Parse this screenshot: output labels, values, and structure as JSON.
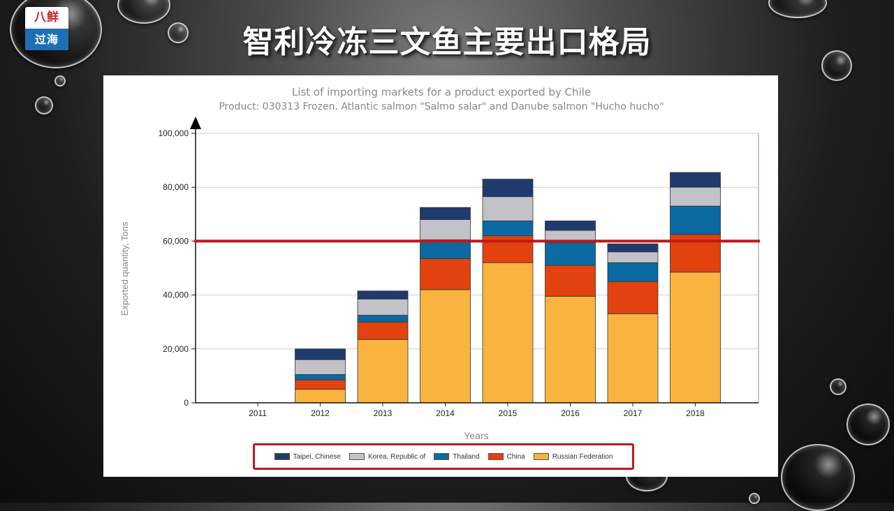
{
  "slide": {
    "title": "智利冷冻三文鱼主要出口格局",
    "logo": {
      "top": "八鲜",
      "bottom": "过海"
    }
  },
  "chart_data": {
    "type": "bar",
    "stacked": true,
    "title": "List of importing markets for a product exported by Chile",
    "subtitle": "Product: 030313 Frozen, Atlantic salmon \"Salmo salar\" and Danube salmon \"Hucho hucho\"",
    "xlabel": "Years",
    "ylabel": "Exported quantity, Tons",
    "categories": [
      "2011",
      "2012",
      "2013",
      "2014",
      "2015",
      "2016",
      "2017",
      "2018"
    ],
    "ylim": [
      0,
      100000
    ],
    "yticks": [
      0,
      20000,
      40000,
      60000,
      80000,
      100000
    ],
    "ytick_labels": [
      "0",
      "20,000",
      "40,000",
      "60,000",
      "80,000",
      "100,000"
    ],
    "grid": true,
    "legend_position": "bottom",
    "reference_line": {
      "value": 60000,
      "color": "#c3161c"
    },
    "series": [
      {
        "name": "Russian Federation",
        "color": "#f9b440",
        "values": [
          0,
          5000,
          23500,
          42000,
          52000,
          39500,
          33000,
          48500
        ]
      },
      {
        "name": "China",
        "color": "#e2420d",
        "values": [
          0,
          3500,
          6500,
          11500,
          10000,
          11500,
          12000,
          14000
        ]
      },
      {
        "name": "Thailand",
        "color": "#0a6aa1",
        "values": [
          0,
          2000,
          2500,
          7000,
          5500,
          8500,
          7000,
          10500
        ]
      },
      {
        "name": "Korea, Republic of",
        "color": "#c2c3c8",
        "values": [
          0,
          5500,
          6000,
          7500,
          9000,
          4500,
          4000,
          7000
        ]
      },
      {
        "name": "Taipei, Chinese",
        "color": "#1f3b6e",
        "values": [
          0,
          4000,
          3000,
          4500,
          6500,
          3500,
          3000,
          5500
        ]
      }
    ],
    "legend_order": [
      "Taipei, Chinese",
      "Korea, Republic of",
      "Thailand",
      "China",
      "Russian Federation"
    ]
  }
}
